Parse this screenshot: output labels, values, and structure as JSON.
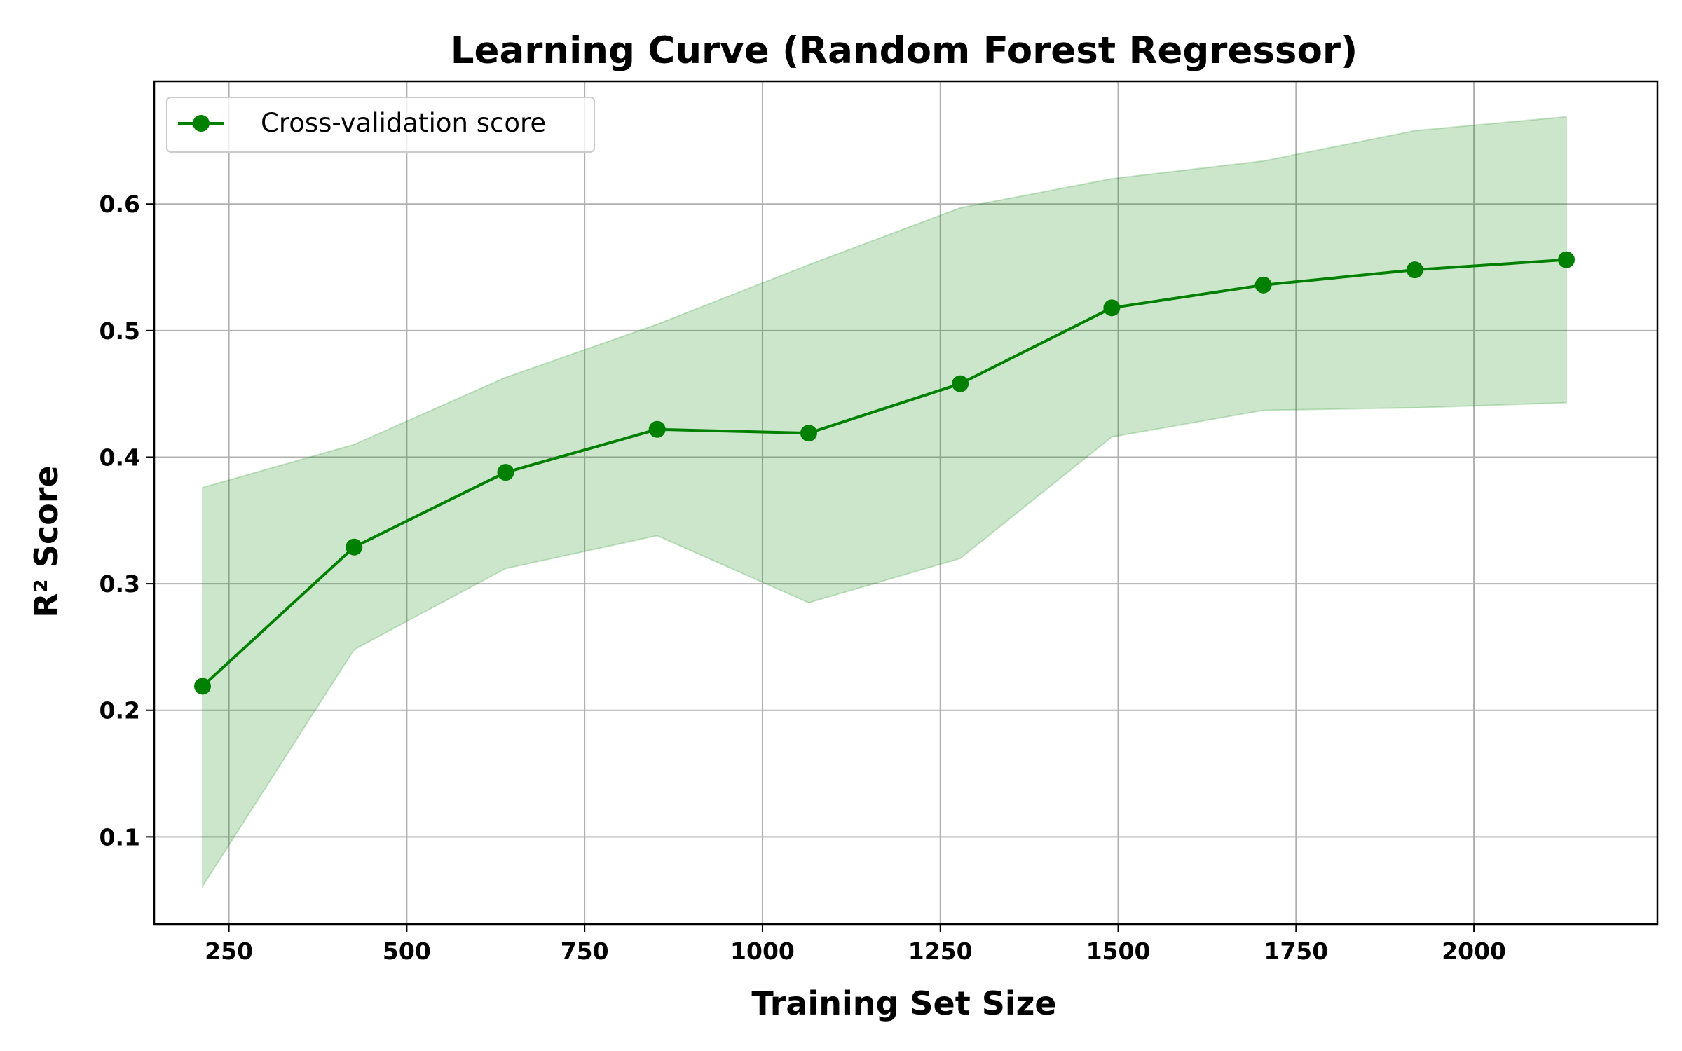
{
  "chart_data": {
    "type": "line",
    "title": "Learning Curve (Random Forest Regressor)",
    "xlabel": "Training Set Size",
    "ylabel": "R² Score",
    "xlim": [
      145,
      2258
    ],
    "ylim": [
      0.031,
      0.697
    ],
    "xticks": [
      250,
      500,
      750,
      1000,
      1250,
      1500,
      1750,
      2000
    ],
    "yticks": [
      0.1,
      0.2,
      0.3,
      0.4,
      0.5,
      0.6
    ],
    "xtick_labels": [
      "250",
      "500",
      "750",
      "1000",
      "1250",
      "1500",
      "1750",
      "2000"
    ],
    "ytick_labels": [
      "0.1",
      "0.2",
      "0.3",
      "0.4",
      "0.5",
      "0.6"
    ],
    "grid": true,
    "legend_position": "upper-left",
    "series": [
      {
        "name": "Cross-validation score",
        "color": "#008000",
        "band_color": "#008000",
        "x": [
          213,
          426,
          639,
          852,
          1065,
          1278,
          1491,
          1704,
          1917,
          2130
        ],
        "values": [
          0.219,
          0.329,
          0.388,
          0.422,
          0.419,
          0.458,
          0.518,
          0.536,
          0.548,
          0.556
        ],
        "lower": [
          0.061,
          0.248,
          0.312,
          0.338,
          0.285,
          0.32,
          0.416,
          0.437,
          0.439,
          0.443
        ],
        "upper": [
          0.376,
          0.41,
          0.463,
          0.505,
          0.552,
          0.597,
          0.62,
          0.634,
          0.658,
          0.669
        ]
      }
    ]
  }
}
